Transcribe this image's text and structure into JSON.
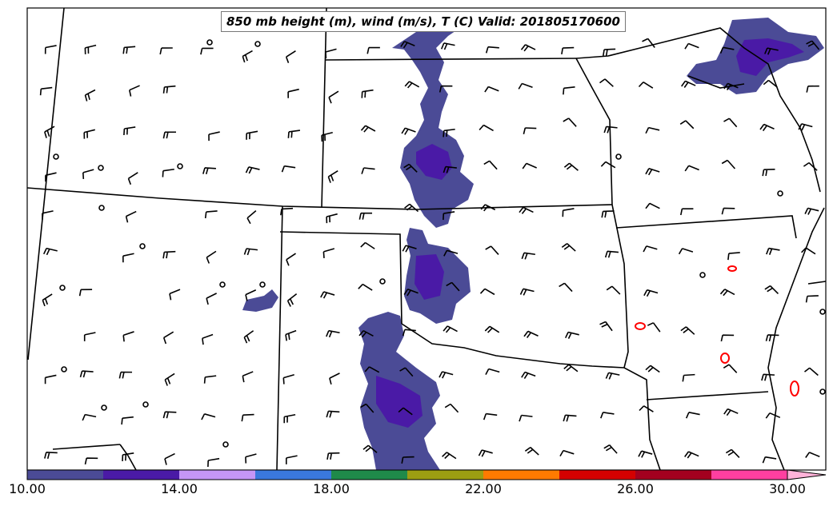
{
  "title": "850 mb height (m), wind (m/s), T (C) Valid: 201805170600",
  "colorbar": {
    "tick_labels": [
      "10.00",
      "14.00",
      "18.00",
      "22.00",
      "26.00",
      "30.00"
    ],
    "colors": [
      "#4b4b96",
      "#4a1aa6",
      "#c596f7",
      "#3a78dd",
      "#1f8a4a",
      "#9c9e12",
      "#ff7a00",
      "#d40000",
      "#a3001f",
      "#ff3fa0",
      "#ffb3d9"
    ]
  },
  "colors": {
    "precip_light": "#4b4b96",
    "precip_dark": "#4a1aa6",
    "temp_contour": "#ff0000",
    "boundaries": "#000000"
  }
}
